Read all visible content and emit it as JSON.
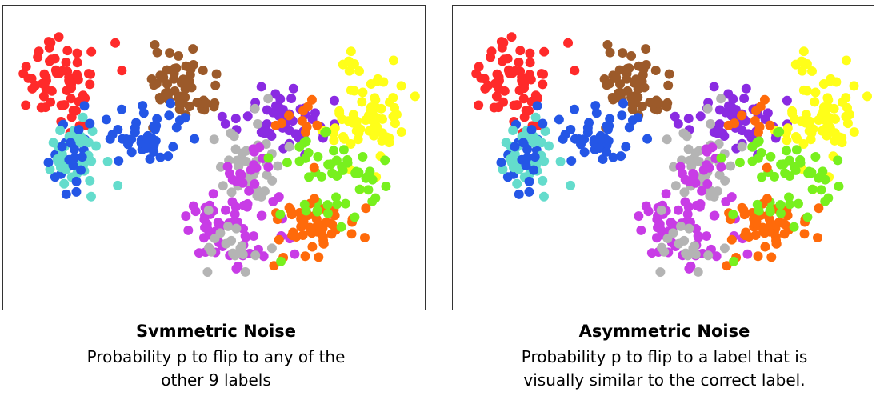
{
  "panels": [
    {
      "title": "Svmmetric Noise",
      "description": "Probability p to flip to any of the\nother 9 labels"
    },
    {
      "title": "Asymmetric Noise",
      "description": "Probability p to flip to a label that is\nvisually similar to the correct label."
    }
  ],
  "colors": {
    "red": "#ff2a2a",
    "brown": "#9c5a2a",
    "blue": "#2456e6",
    "cyan": "#64dccc",
    "purple": "#8a2be2",
    "yellow": "#ffff19",
    "gray": "#b4b4b4",
    "magenta": "#c83ce6",
    "lime": "#78f01e",
    "orange": "#ff6a0a"
  }
}
